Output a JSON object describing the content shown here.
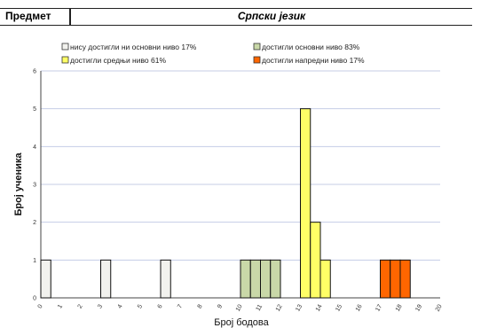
{
  "header": {
    "subject_label": "Предмет",
    "subject_value": "Српски језик"
  },
  "legend": [
    {
      "label": "нису достигли ни основни ниво 17%",
      "color": "#f2f2ee"
    },
    {
      "label": "достигли основни ниво 83%",
      "color": "#c9d8a8"
    },
    {
      "label": "достигли средњи ниво 61%",
      "color": "#ffff66"
    },
    {
      "label": "достигли напредни ниво 17%",
      "color": "#ff6600"
    }
  ],
  "chart_data": {
    "type": "bar",
    "xlabel": "Број бодова",
    "ylabel": "Број ученика",
    "xlim": [
      0,
      20
    ],
    "ylim": [
      0,
      6
    ],
    "yticks": [
      0,
      1,
      2,
      3,
      4,
      5,
      6
    ],
    "xticks": [
      "0",
      "1",
      "2",
      "3",
      "4",
      "5",
      "6",
      "7",
      "8",
      "9",
      "10",
      "11",
      "12",
      "13",
      "14",
      "15",
      "16",
      "17",
      "18",
      "19",
      "20"
    ],
    "grid": "horizontal",
    "legend_position": "top",
    "bars": [
      {
        "x": 0,
        "value": 1,
        "level": 0
      },
      {
        "x": 3,
        "value": 1,
        "level": 0
      },
      {
        "x": 6,
        "value": 1,
        "level": 0
      },
      {
        "x": 10,
        "value": 1,
        "level": 1
      },
      {
        "x": 10.5,
        "value": 1,
        "level": 1
      },
      {
        "x": 11,
        "value": 1,
        "level": 1
      },
      {
        "x": 11.5,
        "value": 1,
        "level": 1
      },
      {
        "x": 13,
        "value": 5,
        "level": 2
      },
      {
        "x": 13.5,
        "value": 2,
        "level": 2
      },
      {
        "x": 14,
        "value": 1,
        "level": 2
      },
      {
        "x": 17,
        "value": 1,
        "level": 3
      },
      {
        "x": 17.5,
        "value": 1,
        "level": 3
      },
      {
        "x": 18,
        "value": 1,
        "level": 3
      }
    ]
  }
}
